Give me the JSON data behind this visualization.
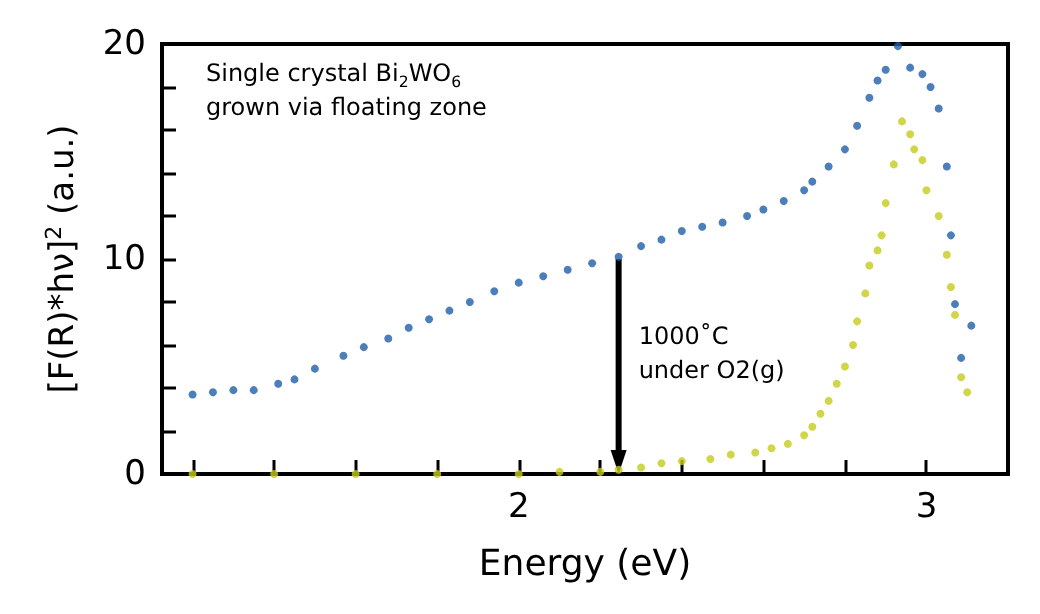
{
  "chart_data": {
    "type": "scatter",
    "xlabel": "Energy (eV)",
    "ylabel": "[F(R)*hν]$^{2}$ (a.u.)",
    "xlim": [
      1.125,
      3.2
    ],
    "ylim": [
      0,
      20
    ],
    "xticks": [
      {
        "value": 1.2,
        "label": null
      },
      {
        "value": 1.4,
        "label": null
      },
      {
        "value": 1.6,
        "label": null
      },
      {
        "value": 1.8,
        "label": null
      },
      2,
      {
        "value": 2.2,
        "label": null
      },
      {
        "value": 2.4,
        "label": null
      },
      {
        "value": 2.6,
        "label": null
      },
      {
        "value": 2.8,
        "label": null
      },
      3
    ],
    "yticks": [
      0,
      {
        "value": 2,
        "label": null
      },
      {
        "value": 4,
        "label": null
      },
      {
        "value": 6,
        "label": null
      },
      {
        "value": 8,
        "label": null
      },
      10,
      {
        "value": 12,
        "label": null
      },
      {
        "value": 14,
        "label": null
      },
      {
        "value": 16,
        "label": null
      },
      {
        "value": 18,
        "label": null
      },
      20
    ],
    "series": [
      {
        "color": "#1f5fa8",
        "x": [
          1.2,
          1.25,
          1.3,
          1.35,
          1.41,
          1.45,
          1.5,
          1.57,
          1.62,
          1.68,
          1.73,
          1.78,
          1.83,
          1.88,
          1.94,
          2.0,
          2.06,
          2.12,
          2.18,
          2.245,
          2.3,
          2.35,
          2.4,
          2.45,
          2.5,
          2.56,
          2.6,
          2.65,
          2.7,
          2.72,
          2.76,
          2.8,
          2.83,
          2.86,
          2.88,
          2.9,
          2.93,
          2.96,
          2.99,
          3.01,
          3.03,
          3.05,
          3.06,
          3.07,
          3.085,
          3.11
        ],
        "values": [
          3.7,
          3.8,
          3.9,
          3.9,
          4.2,
          4.4,
          4.9,
          5.5,
          5.9,
          6.3,
          6.8,
          7.2,
          7.6,
          8.0,
          8.5,
          8.9,
          9.2,
          9.5,
          9.8,
          10.1,
          10.6,
          10.9,
          11.3,
          11.5,
          11.7,
          12.0,
          12.3,
          12.7,
          13.2,
          13.6,
          14.3,
          15.1,
          16.2,
          17.5,
          18.3,
          18.8,
          19.9,
          18.9,
          18.6,
          18.0,
          17.0,
          14.3,
          11.1,
          7.9,
          5.4,
          6.9
        ]
      },
      {
        "color": "#c5cc1a",
        "x": [
          1.2,
          1.4,
          1.6,
          1.8,
          2.0,
          2.1,
          2.2,
          2.245,
          2.3,
          2.35,
          2.4,
          2.47,
          2.52,
          2.58,
          2.62,
          2.66,
          2.7,
          2.72,
          2.74,
          2.76,
          2.78,
          2.8,
          2.82,
          2.83,
          2.85,
          2.86,
          2.88,
          2.89,
          2.9,
          2.92,
          2.94,
          2.96,
          2.97,
          2.99,
          3.0,
          3.03,
          3.05,
          3.06,
          3.07,
          3.085,
          3.1
        ],
        "values": [
          0,
          0,
          0,
          0,
          0,
          0.1,
          0.1,
          0.2,
          0.3,
          0.5,
          0.6,
          0.7,
          0.9,
          1.0,
          1.2,
          1.4,
          1.8,
          2.2,
          2.8,
          3.4,
          4.2,
          5.0,
          6.0,
          7.1,
          8.4,
          9.7,
          10.4,
          11.1,
          12.6,
          14.4,
          16.4,
          15.8,
          15.1,
          14.6,
          13.2,
          12.0,
          10.2,
          8.7,
          7.4,
          4.5,
          3.8
        ]
      }
    ],
    "annotations": [
      "Single crystal Bi$_{2}$WO$_{6}$\ngrown via floating zone",
      {
        "text": "1000˚C\nunder O2(g)",
        "x": 2.245,
        "y": 10
      }
    ],
    "marker": "circle",
    "grid": false
  }
}
